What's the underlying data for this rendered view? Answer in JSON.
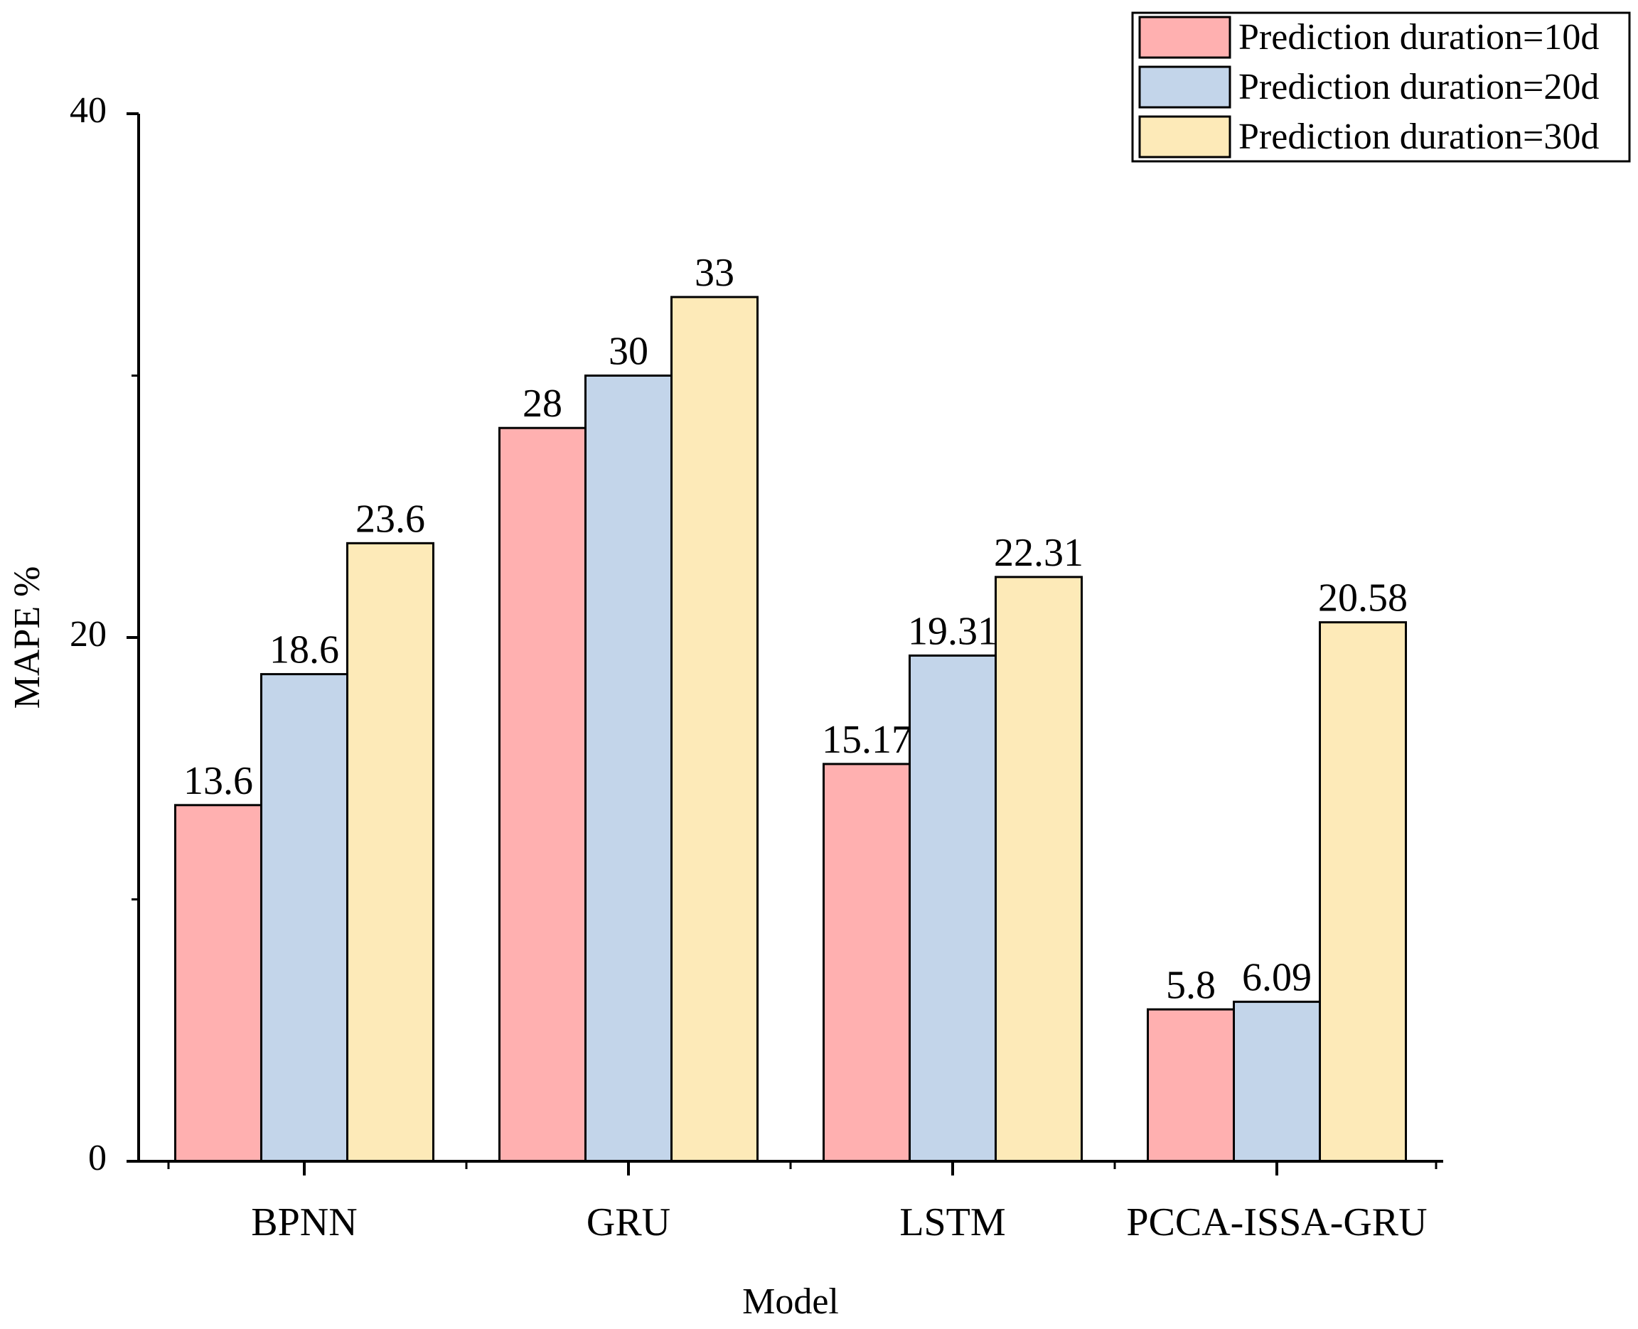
{
  "chart_data": {
    "type": "bar",
    "xlabel": "Model",
    "ylabel": "MAPE %",
    "ylim": [
      0,
      40
    ],
    "yticks": [
      0,
      20,
      40
    ],
    "ytick_labels": [
      "0",
      "20",
      "40"
    ],
    "minor_yticks": [
      10,
      30
    ],
    "categories": [
      "BPNN",
      "GRU",
      "LSTM",
      "PCCA-ISSA-GRU"
    ],
    "series": [
      {
        "name": "Prediction duration=10d",
        "color": "#ffb0b0",
        "values": [
          13.6,
          28,
          15.17,
          5.8
        ],
        "labels": [
          "13.6",
          "28",
          "15.17",
          "5.8"
        ]
      },
      {
        "name": "Prediction duration=20d",
        "color": "#c3d5ea",
        "values": [
          18.6,
          30,
          19.31,
          6.09
        ],
        "labels": [
          "18.6",
          "30",
          "19.31",
          "6.09"
        ]
      },
      {
        "name": "Prediction duration=30d",
        "color": "#fdeab8",
        "values": [
          23.6,
          33,
          22.31,
          20.58
        ],
        "labels": [
          "23.6",
          "33",
          "22.31",
          "20.58"
        ]
      }
    ],
    "legend_position": "top-right",
    "grid": false
  }
}
